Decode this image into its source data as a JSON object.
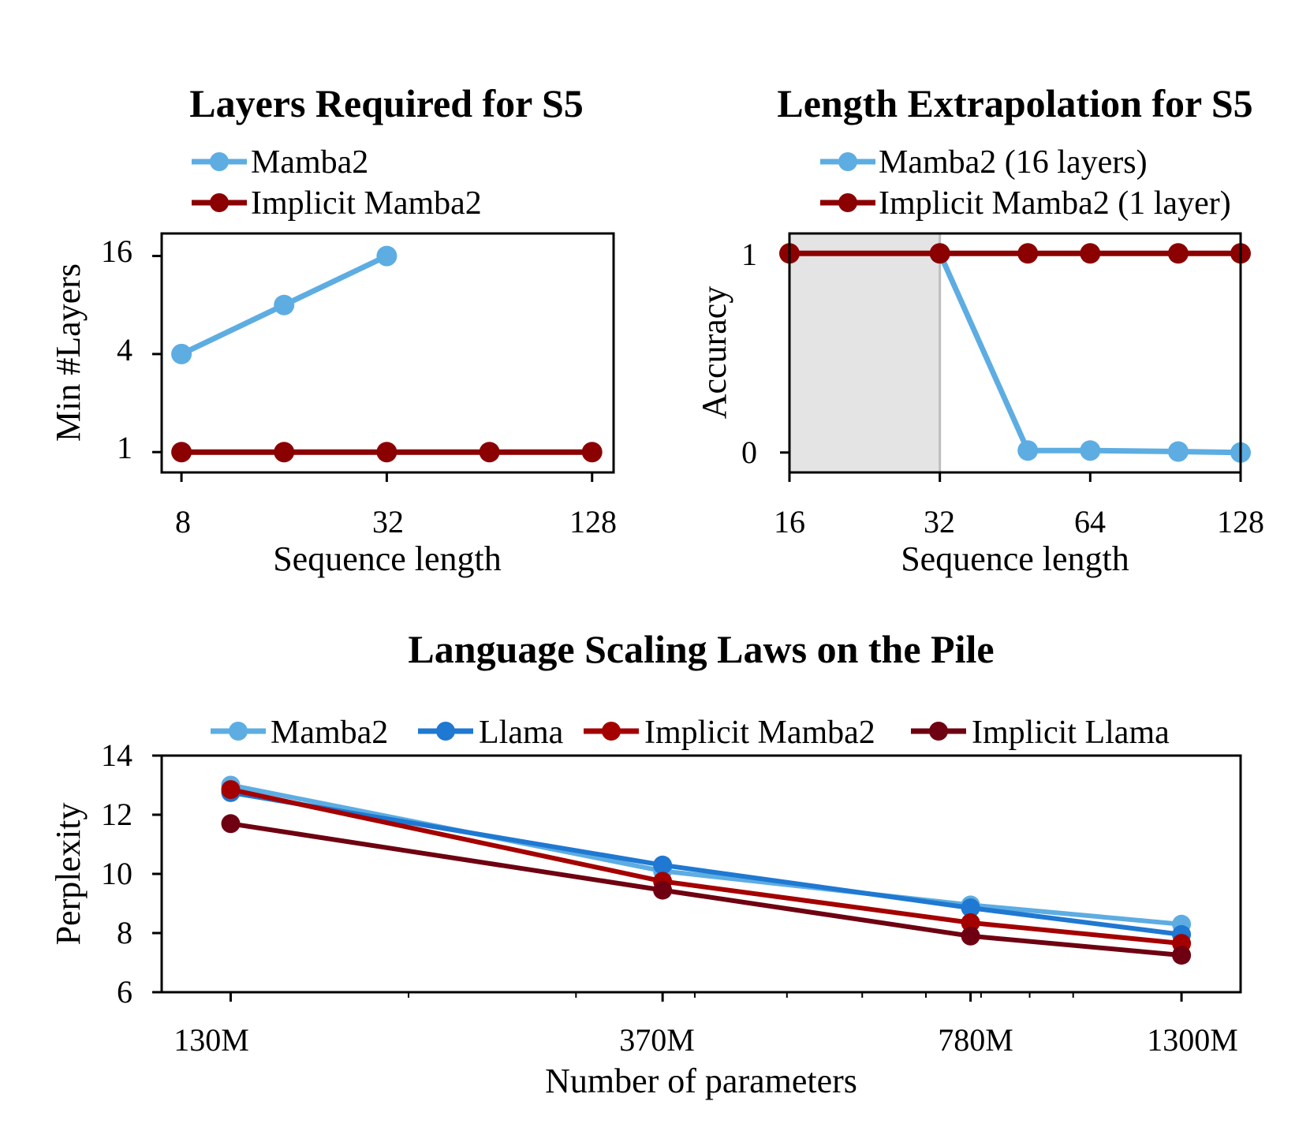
{
  "chart_data": [
    {
      "type": "line",
      "title": "Layers Required for S5",
      "xlabel": "Sequence length",
      "ylabel": "Min #Layers",
      "xscale": "log2",
      "yscale": "log2",
      "xlim": [
        7,
        148
      ],
      "ylim": [
        0.75,
        22
      ],
      "xticks": [
        8,
        32,
        128
      ],
      "xtick_labels": [
        "8",
        "32",
        "128"
      ],
      "yticks": [
        1,
        4,
        16
      ],
      "ytick_labels": [
        "1",
        "4",
        "16"
      ],
      "legend_position": "top-left, above plot",
      "series": [
        {
          "name": "Mamba2",
          "color": "#5dade2",
          "x": [
            8,
            16,
            32
          ],
          "y": [
            4,
            8,
            16
          ]
        },
        {
          "name": "Implicit Mamba2",
          "color": "#8b0000",
          "x": [
            8,
            16,
            32,
            64,
            128
          ],
          "y": [
            1,
            1,
            1,
            1,
            1
          ]
        }
      ]
    },
    {
      "type": "line",
      "title": "Length Extrapolation for S5",
      "xlabel": "Sequence length",
      "ylabel": "Accuracy",
      "xscale": "log2",
      "xlim": [
        16,
        128
      ],
      "ylim": [
        -0.1,
        1.1
      ],
      "xticks": [
        16,
        32,
        64,
        128
      ],
      "xtick_labels": [
        "16",
        "32",
        "64",
        "128"
      ],
      "yticks": [
        0,
        1
      ],
      "ytick_labels": [
        "0",
        "1"
      ],
      "shaded_region": [
        16,
        32
      ],
      "legend_position": "top, above plot",
      "series": [
        {
          "name": "Mamba2 (16 layers)",
          "color": "#5dade2",
          "x": [
            32,
            48,
            64,
            96,
            128
          ],
          "y": [
            1,
            0.01,
            0.01,
            0.005,
            0
          ]
        },
        {
          "name": "Implicit Mamba2 (1 layer)",
          "color": "#8b0000",
          "x": [
            16,
            32,
            48,
            64,
            96,
            128
          ],
          "y": [
            1,
            1,
            1,
            1,
            1,
            1
          ]
        }
      ]
    },
    {
      "type": "line",
      "title": "Language Scaling Laws on the Pile",
      "xlabel": "Number of parameters",
      "ylabel": "Perplexity",
      "xscale": "log",
      "xlim": [
        110,
        1500
      ],
      "ylim": [
        6,
        14
      ],
      "xticks": [
        130,
        370,
        780,
        1300
      ],
      "xtick_labels": [
        "130M",
        "370M",
        "780M",
        "1300M"
      ],
      "yticks": [
        6,
        8,
        10,
        12,
        14
      ],
      "ytick_labels": [
        "6",
        "8",
        "10",
        "12",
        "14"
      ],
      "legend_position": "top, above plot",
      "series": [
        {
          "name": "Mamba2",
          "color": "#5dade2",
          "x": [
            130,
            370,
            780,
            1300
          ],
          "y": [
            13.0,
            10.1,
            8.95,
            8.3
          ]
        },
        {
          "name": "Llama",
          "color": "#1f78d1",
          "x": [
            130,
            370,
            780,
            1300
          ],
          "y": [
            12.75,
            10.3,
            8.85,
            7.95
          ]
        },
        {
          "name": "Implicit Mamba2",
          "color": "#a50000",
          "x": [
            130,
            370,
            780,
            1300
          ],
          "y": [
            12.85,
            9.75,
            8.35,
            7.65
          ]
        },
        {
          "name": "Implicit Llama",
          "color": "#6e0011",
          "x": [
            130,
            370,
            780,
            1300
          ],
          "y": [
            11.7,
            9.45,
            7.9,
            7.25
          ]
        }
      ]
    }
  ]
}
